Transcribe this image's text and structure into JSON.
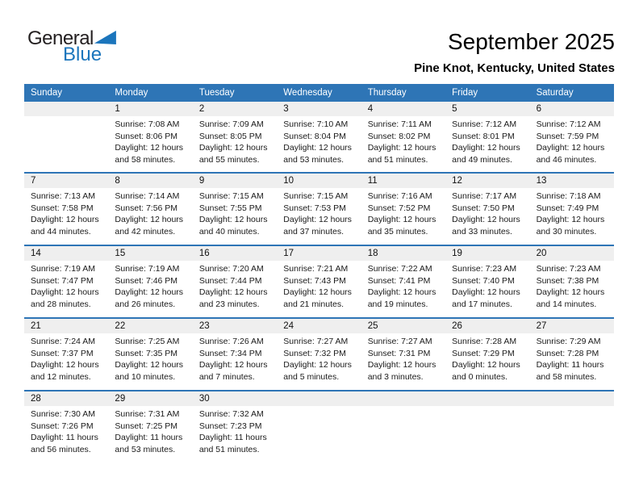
{
  "logo": {
    "general_text": "General",
    "blue_text": "Blue"
  },
  "header": {
    "title": "September 2025",
    "subtitle": "Pine Knot, Kentucky, United States"
  },
  "colors": {
    "header_bg": "#2E75B6",
    "header_text": "#FFFFFF",
    "separator": "#2E75B6",
    "date_strip_bg": "#EFEFEF",
    "brand_blue": "#1B75BC"
  },
  "calendar": {
    "day_headers": [
      "Sunday",
      "Monday",
      "Tuesday",
      "Wednesday",
      "Thursday",
      "Friday",
      "Saturday"
    ],
    "weeks": [
      {
        "days": [
          {
            "date": "",
            "sunrise": "",
            "sunset": "",
            "daylight1": "",
            "daylight2": ""
          },
          {
            "date": "1",
            "sunrise": "Sunrise: 7:08 AM",
            "sunset": "Sunset: 8:06 PM",
            "daylight1": "Daylight: 12 hours",
            "daylight2": "and 58 minutes."
          },
          {
            "date": "2",
            "sunrise": "Sunrise: 7:09 AM",
            "sunset": "Sunset: 8:05 PM",
            "daylight1": "Daylight: 12 hours",
            "daylight2": "and 55 minutes."
          },
          {
            "date": "3",
            "sunrise": "Sunrise: 7:10 AM",
            "sunset": "Sunset: 8:04 PM",
            "daylight1": "Daylight: 12 hours",
            "daylight2": "and 53 minutes."
          },
          {
            "date": "4",
            "sunrise": "Sunrise: 7:11 AM",
            "sunset": "Sunset: 8:02 PM",
            "daylight1": "Daylight: 12 hours",
            "daylight2": "and 51 minutes."
          },
          {
            "date": "5",
            "sunrise": "Sunrise: 7:12 AM",
            "sunset": "Sunset: 8:01 PM",
            "daylight1": "Daylight: 12 hours",
            "daylight2": "and 49 minutes."
          },
          {
            "date": "6",
            "sunrise": "Sunrise: 7:12 AM",
            "sunset": "Sunset: 7:59 PM",
            "daylight1": "Daylight: 12 hours",
            "daylight2": "and 46 minutes."
          }
        ]
      },
      {
        "days": [
          {
            "date": "7",
            "sunrise": "Sunrise: 7:13 AM",
            "sunset": "Sunset: 7:58 PM",
            "daylight1": "Daylight: 12 hours",
            "daylight2": "and 44 minutes."
          },
          {
            "date": "8",
            "sunrise": "Sunrise: 7:14 AM",
            "sunset": "Sunset: 7:56 PM",
            "daylight1": "Daylight: 12 hours",
            "daylight2": "and 42 minutes."
          },
          {
            "date": "9",
            "sunrise": "Sunrise: 7:15 AM",
            "sunset": "Sunset: 7:55 PM",
            "daylight1": "Daylight: 12 hours",
            "daylight2": "and 40 minutes."
          },
          {
            "date": "10",
            "sunrise": "Sunrise: 7:15 AM",
            "sunset": "Sunset: 7:53 PM",
            "daylight1": "Daylight: 12 hours",
            "daylight2": "and 37 minutes."
          },
          {
            "date": "11",
            "sunrise": "Sunrise: 7:16 AM",
            "sunset": "Sunset: 7:52 PM",
            "daylight1": "Daylight: 12 hours",
            "daylight2": "and 35 minutes."
          },
          {
            "date": "12",
            "sunrise": "Sunrise: 7:17 AM",
            "sunset": "Sunset: 7:50 PM",
            "daylight1": "Daylight: 12 hours",
            "daylight2": "and 33 minutes."
          },
          {
            "date": "13",
            "sunrise": "Sunrise: 7:18 AM",
            "sunset": "Sunset: 7:49 PM",
            "daylight1": "Daylight: 12 hours",
            "daylight2": "and 30 minutes."
          }
        ]
      },
      {
        "days": [
          {
            "date": "14",
            "sunrise": "Sunrise: 7:19 AM",
            "sunset": "Sunset: 7:47 PM",
            "daylight1": "Daylight: 12 hours",
            "daylight2": "and 28 minutes."
          },
          {
            "date": "15",
            "sunrise": "Sunrise: 7:19 AM",
            "sunset": "Sunset: 7:46 PM",
            "daylight1": "Daylight: 12 hours",
            "daylight2": "and 26 minutes."
          },
          {
            "date": "16",
            "sunrise": "Sunrise: 7:20 AM",
            "sunset": "Sunset: 7:44 PM",
            "daylight1": "Daylight: 12 hours",
            "daylight2": "and 23 minutes."
          },
          {
            "date": "17",
            "sunrise": "Sunrise: 7:21 AM",
            "sunset": "Sunset: 7:43 PM",
            "daylight1": "Daylight: 12 hours",
            "daylight2": "and 21 minutes."
          },
          {
            "date": "18",
            "sunrise": "Sunrise: 7:22 AM",
            "sunset": "Sunset: 7:41 PM",
            "daylight1": "Daylight: 12 hours",
            "daylight2": "and 19 minutes."
          },
          {
            "date": "19",
            "sunrise": "Sunrise: 7:23 AM",
            "sunset": "Sunset: 7:40 PM",
            "daylight1": "Daylight: 12 hours",
            "daylight2": "and 17 minutes."
          },
          {
            "date": "20",
            "sunrise": "Sunrise: 7:23 AM",
            "sunset": "Sunset: 7:38 PM",
            "daylight1": "Daylight: 12 hours",
            "daylight2": "and 14 minutes."
          }
        ]
      },
      {
        "days": [
          {
            "date": "21",
            "sunrise": "Sunrise: 7:24 AM",
            "sunset": "Sunset: 7:37 PM",
            "daylight1": "Daylight: 12 hours",
            "daylight2": "and 12 minutes."
          },
          {
            "date": "22",
            "sunrise": "Sunrise: 7:25 AM",
            "sunset": "Sunset: 7:35 PM",
            "daylight1": "Daylight: 12 hours",
            "daylight2": "and 10 minutes."
          },
          {
            "date": "23",
            "sunrise": "Sunrise: 7:26 AM",
            "sunset": "Sunset: 7:34 PM",
            "daylight1": "Daylight: 12 hours",
            "daylight2": "and 7 minutes."
          },
          {
            "date": "24",
            "sunrise": "Sunrise: 7:27 AM",
            "sunset": "Sunset: 7:32 PM",
            "daylight1": "Daylight: 12 hours",
            "daylight2": "and 5 minutes."
          },
          {
            "date": "25",
            "sunrise": "Sunrise: 7:27 AM",
            "sunset": "Sunset: 7:31 PM",
            "daylight1": "Daylight: 12 hours",
            "daylight2": "and 3 minutes."
          },
          {
            "date": "26",
            "sunrise": "Sunrise: 7:28 AM",
            "sunset": "Sunset: 7:29 PM",
            "daylight1": "Daylight: 12 hours",
            "daylight2": "and 0 minutes."
          },
          {
            "date": "27",
            "sunrise": "Sunrise: 7:29 AM",
            "sunset": "Sunset: 7:28 PM",
            "daylight1": "Daylight: 11 hours",
            "daylight2": "and 58 minutes."
          }
        ]
      },
      {
        "days": [
          {
            "date": "28",
            "sunrise": "Sunrise: 7:30 AM",
            "sunset": "Sunset: 7:26 PM",
            "daylight1": "Daylight: 11 hours",
            "daylight2": "and 56 minutes."
          },
          {
            "date": "29",
            "sunrise": "Sunrise: 7:31 AM",
            "sunset": "Sunset: 7:25 PM",
            "daylight1": "Daylight: 11 hours",
            "daylight2": "and 53 minutes."
          },
          {
            "date": "30",
            "sunrise": "Sunrise: 7:32 AM",
            "sunset": "Sunset: 7:23 PM",
            "daylight1": "Daylight: 11 hours",
            "daylight2": "and 51 minutes."
          },
          {
            "date": "",
            "sunrise": "",
            "sunset": "",
            "daylight1": "",
            "daylight2": ""
          },
          {
            "date": "",
            "sunrise": "",
            "sunset": "",
            "daylight1": "",
            "daylight2": ""
          },
          {
            "date": "",
            "sunrise": "",
            "sunset": "",
            "daylight1": "",
            "daylight2": ""
          },
          {
            "date": "",
            "sunrise": "",
            "sunset": "",
            "daylight1": "",
            "daylight2": ""
          }
        ]
      }
    ]
  }
}
